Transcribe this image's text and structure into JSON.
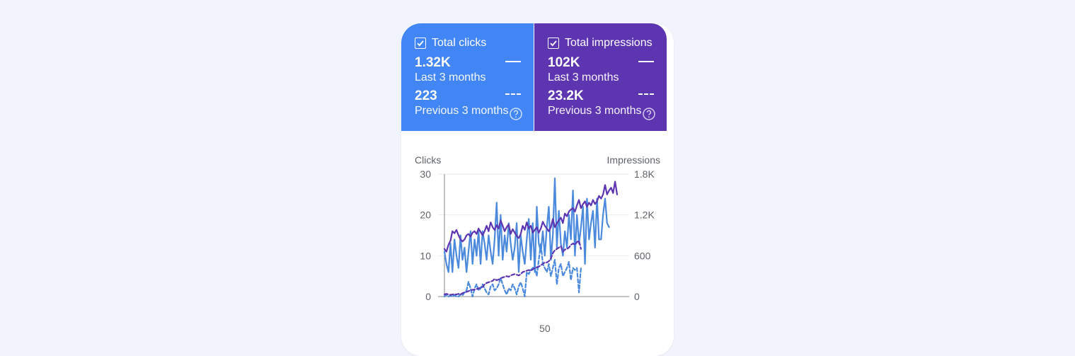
{
  "tiles": {
    "clicks": {
      "title": "Total clicks",
      "current_value": "1.32K",
      "current_label": "Last 3 months",
      "previous_value": "223",
      "previous_label": "Previous 3 months",
      "color": "#4285f4"
    },
    "impressions": {
      "title": "Total impressions",
      "current_value": "102K",
      "current_label": "Last 3 months",
      "previous_value": "23.2K",
      "previous_label": "Previous 3 months",
      "color": "#5e35b1"
    }
  },
  "icons": {
    "checkbox": "checkbox-checked-icon",
    "help": "help-circle-icon"
  },
  "chart_data": {
    "type": "line",
    "ylabel": "Clicks",
    "y2label": "Impressions",
    "ylim": [
      0,
      30
    ],
    "y2lim": [
      0,
      1800
    ],
    "yticks": [
      "0",
      "10",
      "20",
      "30"
    ],
    "y2ticks": [
      "0",
      "600",
      "1.2K",
      "1.8K"
    ],
    "xlim": [
      0,
      92
    ],
    "xticks": [
      "50"
    ],
    "xtick_values": [
      50
    ],
    "grid": true,
    "series": [
      {
        "metric": "clicks",
        "period": "Last 3 months",
        "axis": "left",
        "style": "solid",
        "color": "#4a89dc",
        "values": [
          11,
          8,
          6,
          13,
          6,
          14,
          10,
          7,
          15,
          9,
          12,
          6,
          11,
          16,
          8,
          14,
          10,
          16,
          8,
          16,
          13,
          9,
          15,
          11,
          8,
          14,
          23,
          10,
          20,
          9,
          15,
          11,
          18,
          13,
          9,
          12,
          18,
          6,
          15,
          11,
          8,
          14,
          19,
          9,
          18,
          6,
          22,
          13,
          11,
          16,
          10,
          17,
          22,
          9,
          15,
          29,
          12,
          21,
          13,
          10,
          16,
          12,
          20,
          14,
          26,
          10,
          20,
          13,
          17,
          22,
          8,
          24,
          14,
          18,
          21,
          12,
          24,
          14,
          14,
          20,
          24,
          18,
          17
        ]
      },
      {
        "metric": "impressions",
        "period": "Last 3 months",
        "axis": "right",
        "style": "solid",
        "color": "#5e35b1",
        "values": [
          700,
          660,
          760,
          820,
          960,
          930,
          980,
          900,
          840,
          810,
          840,
          900,
          920,
          880,
          940,
          960,
          920,
          1000,
          950,
          900,
          960,
          1040,
          960,
          1090,
          1020,
          980,
          1050,
          1000,
          1120,
          1040,
          960,
          1020,
          1060,
          920,
          990,
          940,
          890,
          860,
          920,
          1040,
          980,
          1090,
          1000,
          1040,
          940,
          980,
          1020,
          940,
          1000,
          1100,
          1040,
          1000,
          960,
          1020,
          1140,
          1020,
          1080,
          1120,
          1160,
          1080,
          1220,
          1180,
          1250,
          1280,
          1300,
          1250,
          1340,
          1420,
          1300,
          1360,
          1400,
          1320,
          1380,
          1340,
          1420,
          1360,
          1400,
          1480,
          1440,
          1500,
          1640,
          1500,
          1560,
          1600,
          1520,
          1690,
          1500
        ]
      },
      {
        "metric": "clicks",
        "period": "Previous 3 months",
        "axis": "left",
        "style": "dashed",
        "color": "#4a89dc",
        "values": [
          0,
          0.5,
          0,
          0.2,
          0,
          0.4,
          0,
          0,
          0.5,
          0.3,
          1,
          1.5,
          3.6,
          2,
          0,
          2,
          3,
          1.5,
          2,
          3,
          2,
          1,
          0.5,
          2.5,
          3,
          1.5,
          2,
          3,
          4.5,
          3,
          1.5,
          0.5,
          2,
          1.5,
          3,
          2,
          0.5,
          2.5,
          3.5,
          2,
          0,
          6,
          5.5,
          6.5,
          7,
          7.5,
          5,
          9,
          13,
          8,
          7,
          6,
          8,
          5,
          7,
          9,
          3,
          7,
          8,
          5,
          6,
          7,
          8.5,
          4,
          7,
          6.5,
          7,
          1,
          7
        ]
      },
      {
        "metric": "impressions",
        "period": "Previous 3 months",
        "axis": "right",
        "style": "dashed",
        "color": "#5e35b1",
        "values": [
          30,
          40,
          30,
          25,
          30,
          35,
          30,
          40,
          30,
          50,
          60,
          70,
          80,
          90,
          100,
          100,
          110,
          120,
          130,
          140,
          180,
          200,
          210,
          220,
          230,
          260,
          240,
          250,
          270,
          280,
          290,
          300,
          290,
          310,
          320,
          330,
          320,
          310,
          330,
          360,
          370,
          380,
          390,
          380,
          400,
          420,
          430,
          440,
          460,
          480,
          500,
          500,
          520,
          560,
          640,
          680,
          700,
          720,
          740,
          660,
          690,
          700,
          720,
          760,
          780,
          760,
          800,
          820,
          700
        ]
      }
    ]
  }
}
